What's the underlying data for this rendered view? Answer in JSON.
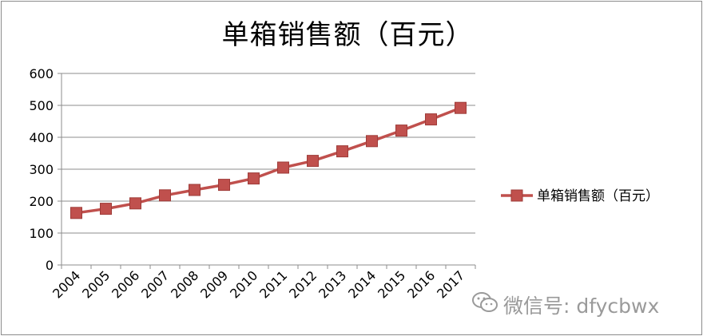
{
  "chart_data": {
    "type": "line",
    "title": "单箱销售额（百元）",
    "xlabel": "",
    "ylabel": "",
    "categories": [
      "2004",
      "2005",
      "2006",
      "2007",
      "2008",
      "2009",
      "2010",
      "2011",
      "2012",
      "2013",
      "2014",
      "2015",
      "2016",
      "2017"
    ],
    "series": [
      {
        "name": "单箱销售额（百元）",
        "values": [
          163,
          176,
          193,
          218,
          235,
          251,
          271,
          305,
          326,
          356,
          388,
          421,
          456,
          492
        ],
        "color": "#c0504d",
        "marker": "square"
      }
    ],
    "ylim": [
      0,
      600
    ],
    "yticks": [
      0,
      100,
      200,
      300,
      400,
      500,
      600
    ],
    "grid": true,
    "legend": "right"
  },
  "watermark": {
    "text": "微信号: dfycbwx",
    "icon": "wechat-icon"
  }
}
